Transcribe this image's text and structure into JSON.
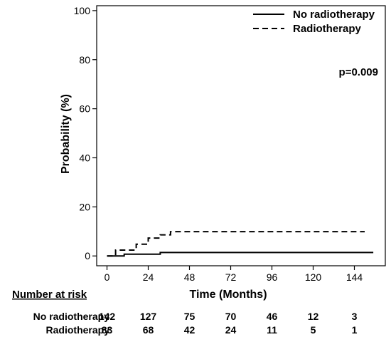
{
  "chart_data": {
    "type": "line",
    "title": "",
    "xlabel": "Time (Months)",
    "ylabel": "Probability (%)",
    "xlim": [
      -6,
      162
    ],
    "ylim": [
      -4,
      102
    ],
    "x_ticks": [
      0,
      24,
      48,
      72,
      96,
      120,
      144
    ],
    "y_ticks": [
      0,
      20,
      40,
      60,
      80,
      100
    ],
    "grid": false,
    "legend_position": "top-right",
    "annotation": "p=0.009",
    "series": [
      {
        "name": "No radiotherapy",
        "line_style": "solid",
        "step": true,
        "points": [
          [
            0,
            0
          ],
          [
            10,
            0
          ],
          [
            10,
            0.7
          ],
          [
            31,
            0.7
          ],
          [
            31,
            1.4
          ],
          [
            155,
            1.4
          ]
        ]
      },
      {
        "name": "Radiotherapy",
        "line_style": "dashed",
        "step": true,
        "points": [
          [
            0,
            0
          ],
          [
            5,
            0
          ],
          [
            5,
            2.4
          ],
          [
            17,
            2.4
          ],
          [
            17,
            4.8
          ],
          [
            24,
            4.8
          ],
          [
            24,
            7.3
          ],
          [
            31,
            7.3
          ],
          [
            31,
            8.6
          ],
          [
            37,
            8.6
          ],
          [
            37,
            9.9
          ],
          [
            150,
            9.9
          ]
        ]
      }
    ]
  },
  "risk_table": {
    "title": "Number at risk",
    "rows": [
      {
        "label": "No radiotherapy",
        "values": [
          "142",
          "127",
          "75",
          "70",
          "46",
          "12",
          "3"
        ]
      },
      {
        "label": "Radiotherapy",
        "values": [
          "83",
          "68",
          "42",
          "24",
          "11",
          "5",
          "1"
        ]
      }
    ]
  }
}
